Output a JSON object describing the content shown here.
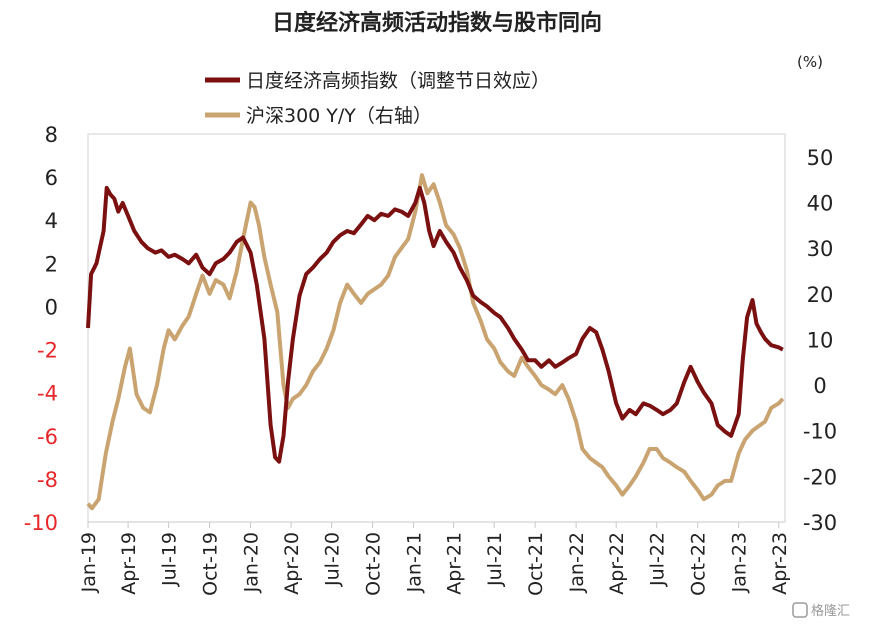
{
  "chart_data": {
    "type": "line",
    "title": "日度经济高频活动指数与股市同向",
    "unit_right": "(%)",
    "x_ticks": [
      "Jan-19",
      "Apr-19",
      "Jul-19",
      "Oct-19",
      "Jan-20",
      "Apr-20",
      "Jul-20",
      "Oct-20",
      "Jan-21",
      "Apr-21",
      "Jul-21",
      "Oct-21",
      "Jan-22",
      "Apr-22",
      "Jul-22",
      "Oct-22",
      "Jan-23",
      "Apr-23"
    ],
    "left_axis": {
      "min": -10,
      "max": 8,
      "ticks": [
        "8",
        "6",
        "4",
        "2",
        "0",
        "-2",
        "-4",
        "-6",
        "-8",
        "-10"
      ],
      "negative_color": "#e8272b"
    },
    "right_axis": {
      "min": -30,
      "max": 55,
      "ticks": [
        "50",
        "40",
        "30",
        "20",
        "10",
        "0",
        "-10",
        "-20",
        "-30"
      ]
    },
    "series": [
      {
        "name": "日度经济高频指数（调整节日效应）",
        "axis": "left",
        "color": "#7b1011",
        "points": [
          [
            "2019-01-01",
            -1.0
          ],
          [
            "2019-01-08",
            1.5
          ],
          [
            "2019-01-20",
            2.0
          ],
          [
            "2019-02-05",
            3.5
          ],
          [
            "2019-02-12",
            5.5
          ],
          [
            "2019-02-20",
            5.2
          ],
          [
            "2019-03-01",
            5.0
          ],
          [
            "2019-03-10",
            4.4
          ],
          [
            "2019-03-20",
            4.8
          ],
          [
            "2019-04-01",
            4.2
          ],
          [
            "2019-04-15",
            3.5
          ],
          [
            "2019-05-01",
            3.0
          ],
          [
            "2019-05-15",
            2.7
          ],
          [
            "2019-06-01",
            2.5
          ],
          [
            "2019-06-15",
            2.6
          ],
          [
            "2019-07-01",
            2.3
          ],
          [
            "2019-07-15",
            2.4
          ],
          [
            "2019-08-01",
            2.2
          ],
          [
            "2019-08-15",
            2.0
          ],
          [
            "2019-09-01",
            2.4
          ],
          [
            "2019-09-15",
            1.8
          ],
          [
            "2019-10-01",
            1.5
          ],
          [
            "2019-10-15",
            2.0
          ],
          [
            "2019-11-01",
            2.2
          ],
          [
            "2019-11-15",
            2.5
          ],
          [
            "2019-12-01",
            3.0
          ],
          [
            "2019-12-15",
            3.2
          ],
          [
            "2020-01-01",
            2.5
          ],
          [
            "2020-01-15",
            1.0
          ],
          [
            "2020-02-01",
            -1.5
          ],
          [
            "2020-02-15",
            -5.5
          ],
          [
            "2020-02-25",
            -7.0
          ],
          [
            "2020-03-05",
            -7.2
          ],
          [
            "2020-03-15",
            -6.0
          ],
          [
            "2020-03-25",
            -3.5
          ],
          [
            "2020-04-05",
            -1.5
          ],
          [
            "2020-04-20",
            0.5
          ],
          [
            "2020-05-05",
            1.5
          ],
          [
            "2020-05-20",
            1.8
          ],
          [
            "2020-06-05",
            2.2
          ],
          [
            "2020-06-20",
            2.5
          ],
          [
            "2020-07-05",
            3.0
          ],
          [
            "2020-07-20",
            3.3
          ],
          [
            "2020-08-05",
            3.5
          ],
          [
            "2020-08-20",
            3.4
          ],
          [
            "2020-09-05",
            3.8
          ],
          [
            "2020-09-20",
            4.2
          ],
          [
            "2020-10-05",
            4.0
          ],
          [
            "2020-10-20",
            4.3
          ],
          [
            "2020-11-05",
            4.2
          ],
          [
            "2020-11-20",
            4.5
          ],
          [
            "2020-12-05",
            4.4
          ],
          [
            "2020-12-20",
            4.2
          ],
          [
            "2021-01-05",
            4.8
          ],
          [
            "2021-01-15",
            5.5
          ],
          [
            "2021-01-25",
            4.8
          ],
          [
            "2021-02-05",
            3.5
          ],
          [
            "2021-02-15",
            2.8
          ],
          [
            "2021-03-01",
            3.5
          ],
          [
            "2021-03-15",
            3.0
          ],
          [
            "2021-04-01",
            2.5
          ],
          [
            "2021-04-15",
            1.8
          ],
          [
            "2021-05-01",
            1.2
          ],
          [
            "2021-05-15",
            0.5
          ],
          [
            "2021-06-01",
            0.2
          ],
          [
            "2021-06-15",
            0.0
          ],
          [
            "2021-07-01",
            -0.3
          ],
          [
            "2021-07-15",
            -0.5
          ],
          [
            "2021-08-01",
            -1.0
          ],
          [
            "2021-08-15",
            -1.5
          ],
          [
            "2021-09-01",
            -2.0
          ],
          [
            "2021-09-15",
            -2.5
          ],
          [
            "2021-10-01",
            -2.5
          ],
          [
            "2021-10-15",
            -2.8
          ],
          [
            "2021-11-01",
            -2.5
          ],
          [
            "2021-11-15",
            -2.8
          ],
          [
            "2021-12-01",
            -2.6
          ],
          [
            "2021-12-15",
            -2.4
          ],
          [
            "2022-01-01",
            -2.2
          ],
          [
            "2022-01-15",
            -1.5
          ],
          [
            "2022-02-01",
            -1.0
          ],
          [
            "2022-02-15",
            -1.2
          ],
          [
            "2022-03-01",
            -2.0
          ],
          [
            "2022-03-15",
            -3.0
          ],
          [
            "2022-04-01",
            -4.5
          ],
          [
            "2022-04-15",
            -5.2
          ],
          [
            "2022-05-01",
            -4.8
          ],
          [
            "2022-05-15",
            -5.0
          ],
          [
            "2022-06-01",
            -4.5
          ],
          [
            "2022-06-15",
            -4.6
          ],
          [
            "2022-07-01",
            -4.8
          ],
          [
            "2022-07-15",
            -5.0
          ],
          [
            "2022-08-01",
            -4.8
          ],
          [
            "2022-08-15",
            -4.5
          ],
          [
            "2022-09-01",
            -3.5
          ],
          [
            "2022-09-15",
            -2.8
          ],
          [
            "2022-10-01",
            -3.5
          ],
          [
            "2022-10-15",
            -4.0
          ],
          [
            "2022-11-01",
            -4.5
          ],
          [
            "2022-11-15",
            -5.5
          ],
          [
            "2022-12-01",
            -5.8
          ],
          [
            "2022-12-15",
            -6.0
          ],
          [
            "2023-01-01",
            -5.0
          ],
          [
            "2023-01-10",
            -2.5
          ],
          [
            "2023-01-20",
            -0.5
          ],
          [
            "2023-02-01",
            0.3
          ],
          [
            "2023-02-10",
            -0.8
          ],
          [
            "2023-02-20",
            -1.2
          ],
          [
            "2023-03-01",
            -1.5
          ],
          [
            "2023-03-15",
            -1.8
          ],
          [
            "2023-04-01",
            -1.9
          ],
          [
            "2023-04-10",
            -2.0
          ]
        ]
      },
      {
        "name": "沪深300 Y/Y（右轴）",
        "axis": "right",
        "color": "#c9a471",
        "points": [
          [
            "2019-01-01",
            -26
          ],
          [
            "2019-01-10",
            -27
          ],
          [
            "2019-01-25",
            -25
          ],
          [
            "2019-02-10",
            -15
          ],
          [
            "2019-02-25",
            -8
          ],
          [
            "2019-03-10",
            -3
          ],
          [
            "2019-03-25",
            4
          ],
          [
            "2019-04-05",
            8
          ],
          [
            "2019-04-20",
            -2
          ],
          [
            "2019-05-05",
            -5
          ],
          [
            "2019-05-20",
            -6
          ],
          [
            "2019-06-05",
            0
          ],
          [
            "2019-06-20",
            8
          ],
          [
            "2019-07-01",
            12
          ],
          [
            "2019-07-15",
            10
          ],
          [
            "2019-08-01",
            13
          ],
          [
            "2019-08-15",
            15
          ],
          [
            "2019-09-01",
            20
          ],
          [
            "2019-09-15",
            24
          ],
          [
            "2019-10-01",
            20
          ],
          [
            "2019-10-15",
            23
          ],
          [
            "2019-11-01",
            22
          ],
          [
            "2019-11-15",
            19
          ],
          [
            "2019-12-01",
            25
          ],
          [
            "2019-12-15",
            32
          ],
          [
            "2020-01-01",
            40
          ],
          [
            "2020-01-10",
            39
          ],
          [
            "2020-01-20",
            35
          ],
          [
            "2020-02-01",
            28
          ],
          [
            "2020-02-15",
            22
          ],
          [
            "2020-03-01",
            16
          ],
          [
            "2020-03-15",
            0
          ],
          [
            "2020-03-25",
            -5
          ],
          [
            "2020-04-05",
            -3
          ],
          [
            "2020-04-20",
            -2
          ],
          [
            "2020-05-05",
            0
          ],
          [
            "2020-05-20",
            3
          ],
          [
            "2020-06-05",
            5
          ],
          [
            "2020-06-20",
            8
          ],
          [
            "2020-07-05",
            12
          ],
          [
            "2020-07-20",
            18
          ],
          [
            "2020-08-05",
            22
          ],
          [
            "2020-08-20",
            20
          ],
          [
            "2020-09-05",
            18
          ],
          [
            "2020-09-20",
            20
          ],
          [
            "2020-10-05",
            21
          ],
          [
            "2020-10-20",
            22
          ],
          [
            "2020-11-05",
            24
          ],
          [
            "2020-11-20",
            28
          ],
          [
            "2020-12-05",
            30
          ],
          [
            "2020-12-20",
            32
          ],
          [
            "2021-01-05",
            38
          ],
          [
            "2021-01-20",
            46
          ],
          [
            "2021-02-01",
            42
          ],
          [
            "2021-02-15",
            44
          ],
          [
            "2021-03-01",
            40
          ],
          [
            "2021-03-15",
            35
          ],
          [
            "2021-04-01",
            33
          ],
          [
            "2021-04-15",
            30
          ],
          [
            "2021-05-01",
            25
          ],
          [
            "2021-05-15",
            18
          ],
          [
            "2021-06-01",
            14
          ],
          [
            "2021-06-15",
            10
          ],
          [
            "2021-07-01",
            8
          ],
          [
            "2021-07-15",
            5
          ],
          [
            "2021-08-01",
            3
          ],
          [
            "2021-08-15",
            2
          ],
          [
            "2021-09-01",
            6
          ],
          [
            "2021-09-15",
            4
          ],
          [
            "2021-10-01",
            2
          ],
          [
            "2021-10-15",
            0
          ],
          [
            "2021-11-01",
            -1
          ],
          [
            "2021-11-15",
            -2
          ],
          [
            "2021-12-01",
            0
          ],
          [
            "2021-12-15",
            -3
          ],
          [
            "2022-01-01",
            -8
          ],
          [
            "2022-01-15",
            -14
          ],
          [
            "2022-02-01",
            -16
          ],
          [
            "2022-02-15",
            -17
          ],
          [
            "2022-03-01",
            -18
          ],
          [
            "2022-03-15",
            -20
          ],
          [
            "2022-04-01",
            -22
          ],
          [
            "2022-04-15",
            -24
          ],
          [
            "2022-05-01",
            -22
          ],
          [
            "2022-05-15",
            -20
          ],
          [
            "2022-06-01",
            -17
          ],
          [
            "2022-06-15",
            -14
          ],
          [
            "2022-07-01",
            -14
          ],
          [
            "2022-07-15",
            -16
          ],
          [
            "2022-08-01",
            -17
          ],
          [
            "2022-08-15",
            -18
          ],
          [
            "2022-09-01",
            -19
          ],
          [
            "2022-09-15",
            -21
          ],
          [
            "2022-10-01",
            -23
          ],
          [
            "2022-10-15",
            -25
          ],
          [
            "2022-11-01",
            -24
          ],
          [
            "2022-11-15",
            -22
          ],
          [
            "2022-12-01",
            -21
          ],
          [
            "2022-12-15",
            -21
          ],
          [
            "2023-01-01",
            -15
          ],
          [
            "2023-01-15",
            -12
          ],
          [
            "2023-02-01",
            -10
          ],
          [
            "2023-02-15",
            -9
          ],
          [
            "2023-03-01",
            -8
          ],
          [
            "2023-03-15",
            -5
          ],
          [
            "2023-04-01",
            -4
          ],
          [
            "2023-04-10",
            -3
          ]
        ]
      }
    ],
    "grid": false,
    "legend_placement": "top"
  },
  "watermark": "格隆汇"
}
